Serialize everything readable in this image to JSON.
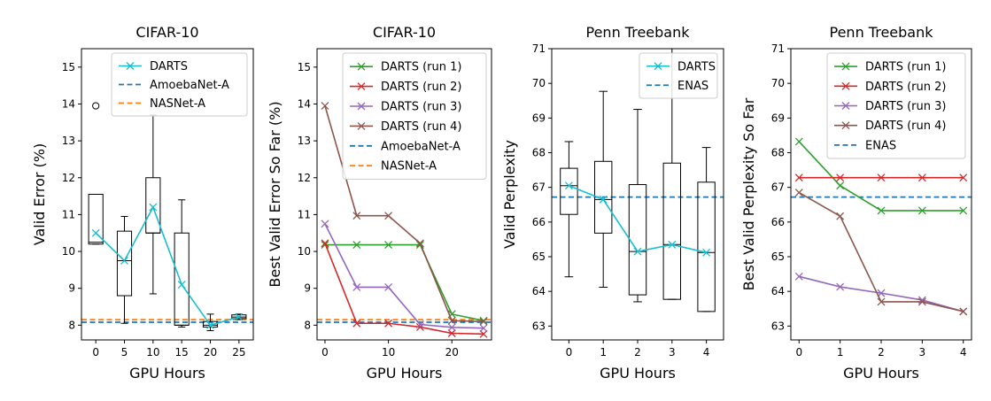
{
  "chart_data": [
    {
      "type": "box",
      "title": "CIFAR-10",
      "xlabel": "GPU Hours",
      "ylabel": "Valid Error (%)",
      "xlim": [
        -2.5,
        27.5
      ],
      "ylim": [
        7.6,
        15.5
      ],
      "xticks": [
        0,
        5,
        10,
        15,
        20,
        25
      ],
      "yticks": [
        8,
        9,
        10,
        11,
        12,
        13,
        14,
        15
      ],
      "boxes": [
        {
          "x": 0,
          "whislo": 10.2,
          "q1": 10.2,
          "med": 10.25,
          "q3": 11.55,
          "whishi": 11.55,
          "fliers": [
            13.95
          ]
        },
        {
          "x": 5,
          "whislo": 8.05,
          "q1": 8.8,
          "med": 9.75,
          "q3": 10.55,
          "whishi": 10.95,
          "fliers": []
        },
        {
          "x": 10,
          "whislo": 8.85,
          "q1": 10.5,
          "med": 10.5,
          "q3": 12.0,
          "whishi": 13.7,
          "fliers": []
        },
        {
          "x": 15,
          "whislo": 7.95,
          "q1": 8.0,
          "med": 8.0,
          "q3": 10.5,
          "whishi": 11.4,
          "fliers": []
        },
        {
          "x": 20,
          "whislo": 7.85,
          "q1": 7.95,
          "med": 8.0,
          "q3": 8.1,
          "whishi": 8.3,
          "fliers": []
        },
        {
          "x": 25,
          "whislo": 8.15,
          "q1": 8.18,
          "med": 8.22,
          "q3": 8.28,
          "whishi": 8.3,
          "fliers": []
        }
      ],
      "series": [
        {
          "name": "DARTS",
          "color": "#17becf",
          "marker": "x",
          "x": [
            0,
            5,
            10,
            15,
            20,
            25
          ],
          "y": [
            10.5,
            9.75,
            11.2,
            9.1,
            8.0,
            8.22
          ]
        }
      ],
      "hlines": [
        {
          "name": "AmoebaNet-A",
          "y": 8.08,
          "color": "#1f77b4"
        },
        {
          "name": "NASNet-A",
          "y": 8.15,
          "color": "#ff7f0e"
        }
      ],
      "legend": "top-right"
    },
    {
      "type": "line",
      "title": "CIFAR-10",
      "xlabel": "GPU Hours",
      "ylabel": "Best Valid Error So Far (%)",
      "xlim": [
        -1.25,
        26.25
      ],
      "ylim": [
        7.6,
        15.5
      ],
      "xticks": [
        0,
        10,
        20
      ],
      "yticks": [
        8,
        9,
        10,
        11,
        12,
        13,
        14,
        15
      ],
      "series": [
        {
          "name": "DARTS (run 1)",
          "color": "#2ca02c",
          "marker": "x",
          "x": [
            0,
            5,
            10,
            15,
            20,
            25
          ],
          "y": [
            10.18,
            10.18,
            10.18,
            10.18,
            8.3,
            8.12
          ]
        },
        {
          "name": "DARTS (run 2)",
          "color": "#d62728",
          "marker": "x",
          "x": [
            0,
            5,
            10,
            15,
            20,
            25
          ],
          "y": [
            10.22,
            8.05,
            8.05,
            7.95,
            7.78,
            7.76
          ]
        },
        {
          "name": "DARTS (run 3)",
          "color": "#9467bd",
          "marker": "x",
          "x": [
            0,
            5,
            10,
            15,
            20,
            25
          ],
          "y": [
            10.75,
            9.03,
            9.03,
            8.02,
            7.94,
            7.92
          ]
        },
        {
          "name": "DARTS (run 4)",
          "color": "#8c564b",
          "marker": "x",
          "x": [
            0,
            5,
            10,
            15,
            20,
            25
          ],
          "y": [
            13.95,
            10.97,
            10.97,
            10.22,
            8.12,
            8.1
          ]
        }
      ],
      "hlines": [
        {
          "name": "AmoebaNet-A",
          "y": 8.08,
          "color": "#1f77b4"
        },
        {
          "name": "NASNet-A",
          "y": 8.15,
          "color": "#ff7f0e"
        }
      ],
      "legend": "top-right"
    },
    {
      "type": "box",
      "title": "Penn Treebank",
      "xlabel": "GPU Hours",
      "ylabel": "Valid Perplexity",
      "xlim": [
        -0.5,
        4.5
      ],
      "ylim": [
        62.6,
        71.0
      ],
      "xticks": [
        0,
        1,
        2,
        3,
        4
      ],
      "yticks": [
        63,
        64,
        65,
        66,
        67,
        68,
        69,
        70,
        71
      ],
      "boxes": [
        {
          "x": 0,
          "whislo": 64.42,
          "q1": 66.22,
          "med": 67.05,
          "q3": 67.55,
          "whishi": 68.32,
          "fliers": []
        },
        {
          "x": 1,
          "whislo": 64.12,
          "q1": 65.68,
          "med": 66.65,
          "q3": 67.75,
          "whishi": 69.77,
          "fliers": []
        },
        {
          "x": 2,
          "whislo": 63.7,
          "q1": 63.9,
          "med": 65.15,
          "q3": 67.08,
          "whishi": 69.25,
          "fliers": []
        },
        {
          "x": 3,
          "whislo": 63.77,
          "q1": 63.77,
          "med": 65.35,
          "q3": 67.7,
          "whishi": 71.0,
          "fliers": []
        },
        {
          "x": 4,
          "whislo": 63.42,
          "q1": 63.42,
          "med": 65.12,
          "q3": 67.15,
          "whishi": 68.15,
          "fliers": []
        }
      ],
      "series": [
        {
          "name": "DARTS",
          "color": "#17becf",
          "marker": "x",
          "x": [
            0,
            1,
            2,
            3,
            4
          ],
          "y": [
            67.05,
            66.65,
            65.15,
            65.35,
            65.12
          ]
        }
      ],
      "hlines": [
        {
          "name": "ENAS",
          "y": 66.72,
          "color": "#1f77b4"
        }
      ],
      "legend": "top-right"
    },
    {
      "type": "line",
      "title": "Penn Treebank",
      "xlabel": "GPU Hours",
      "ylabel": "Best Valid Perplexity So Far",
      "xlim": [
        -0.2,
        4.2
      ],
      "ylim": [
        62.6,
        71.0
      ],
      "xticks": [
        0,
        1,
        2,
        3,
        4
      ],
      "yticks": [
        63,
        64,
        65,
        66,
        67,
        68,
        69,
        70,
        71
      ],
      "series": [
        {
          "name": "DARTS (run 1)",
          "color": "#2ca02c",
          "marker": "x",
          "x": [
            0,
            1,
            2,
            3,
            4
          ],
          "y": [
            68.32,
            67.05,
            66.33,
            66.33,
            66.33
          ]
        },
        {
          "name": "DARTS (run 2)",
          "color": "#d62728",
          "marker": "x",
          "x": [
            0,
            1,
            2,
            3,
            4
          ],
          "y": [
            67.28,
            67.28,
            67.28,
            67.28,
            67.28
          ]
        },
        {
          "name": "DARTS (run 3)",
          "color": "#9467bd",
          "marker": "x",
          "x": [
            0,
            1,
            2,
            3,
            4
          ],
          "y": [
            64.43,
            64.13,
            63.95,
            63.75,
            63.42
          ]
        },
        {
          "name": "DARTS (run 4)",
          "color": "#8c564b",
          "marker": "x",
          "x": [
            0,
            1,
            2,
            3,
            4
          ],
          "y": [
            66.85,
            66.17,
            63.7,
            63.7,
            63.42
          ]
        }
      ],
      "hlines": [
        {
          "name": "ENAS",
          "y": 66.72,
          "color": "#1f77b4"
        }
      ],
      "legend": "top-right"
    }
  ]
}
